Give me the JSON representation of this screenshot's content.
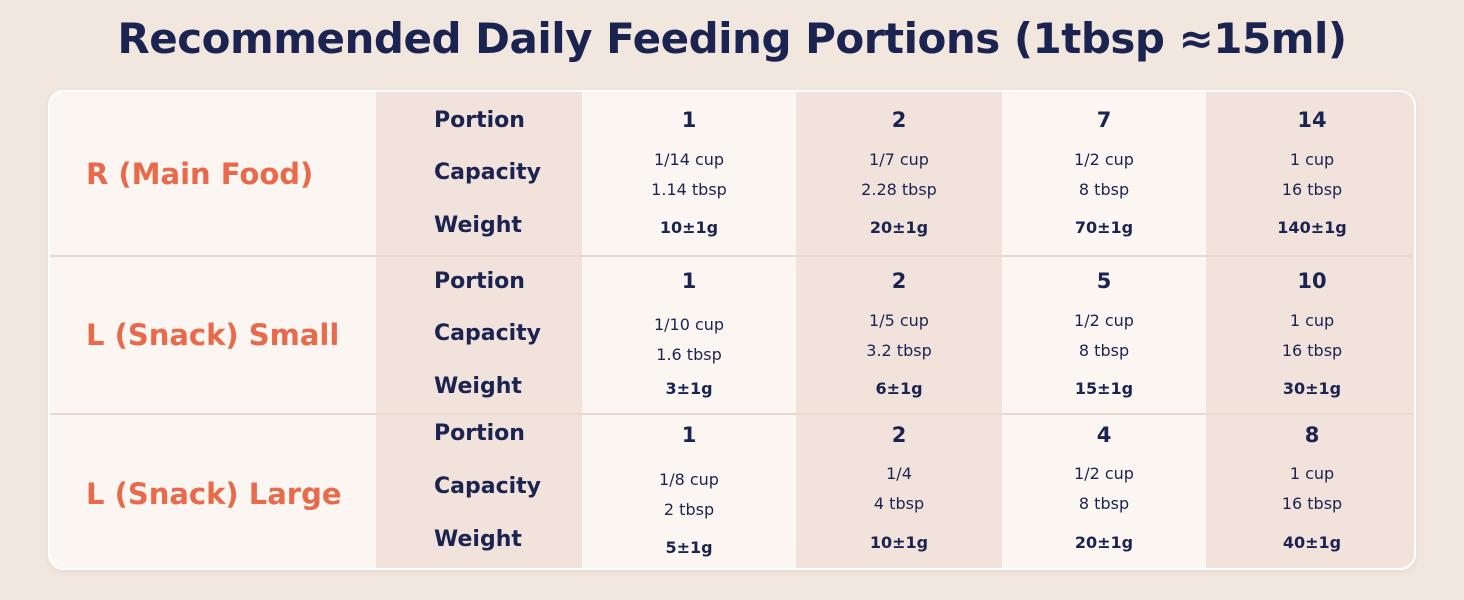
{
  "title": "Recommended Daily Feeding Portions (1tbsp ≈15ml)",
  "colors": {
    "background": "#f2e7df",
    "card": "#fcf6f3",
    "shaded_column": "#f1e3dc",
    "heading_text": "#1b2450",
    "food_name_text": "#e9694b"
  },
  "row_labels": {
    "portion": "Portion",
    "capacity": "Capacity",
    "weight": "Weight"
  },
  "groups": [
    {
      "name": "R (Main Food)",
      "cols": [
        {
          "portion": "1",
          "cap1": "1/14 cup",
          "cap2": "1.14 tbsp",
          "weight": "10±1g"
        },
        {
          "portion": "2",
          "cap1": "1/7 cup",
          "cap2": "2.28 tbsp",
          "weight": "20±1g"
        },
        {
          "portion": "7",
          "cap1": "1/2 cup",
          "cap2": "8 tbsp",
          "weight": "70±1g"
        },
        {
          "portion": "14",
          "cap1": "1 cup",
          "cap2": "16 tbsp",
          "weight": "140±1g"
        }
      ]
    },
    {
      "name": "L (Snack) Small",
      "cols": [
        {
          "portion": "1",
          "cap1": "1/10 cup",
          "cap2": "1.6 tbsp",
          "weight": "3±1g"
        },
        {
          "portion": "2",
          "cap1": "1/5 cup",
          "cap2": "3.2 tbsp",
          "weight": "6±1g"
        },
        {
          "portion": "5",
          "cap1": "1/2 cup",
          "cap2": "8 tbsp",
          "weight": "15±1g"
        },
        {
          "portion": "10",
          "cap1": "1 cup",
          "cap2": "16 tbsp",
          "weight": "30±1g"
        }
      ]
    },
    {
      "name": "L (Snack) Large",
      "cols": [
        {
          "portion": "1",
          "cap1": "1/8 cup",
          "cap2": "2 tbsp",
          "weight": "5±1g"
        },
        {
          "portion": "2",
          "cap1": "1/4",
          "cap2": "4 tbsp",
          "weight": "10±1g"
        },
        {
          "portion": "4",
          "cap1": "1/2 cup",
          "cap2": "8 tbsp",
          "weight": "20±1g"
        },
        {
          "portion": "8",
          "cap1": "1 cup",
          "cap2": "16 tbsp",
          "weight": "40±1g"
        }
      ]
    }
  ]
}
